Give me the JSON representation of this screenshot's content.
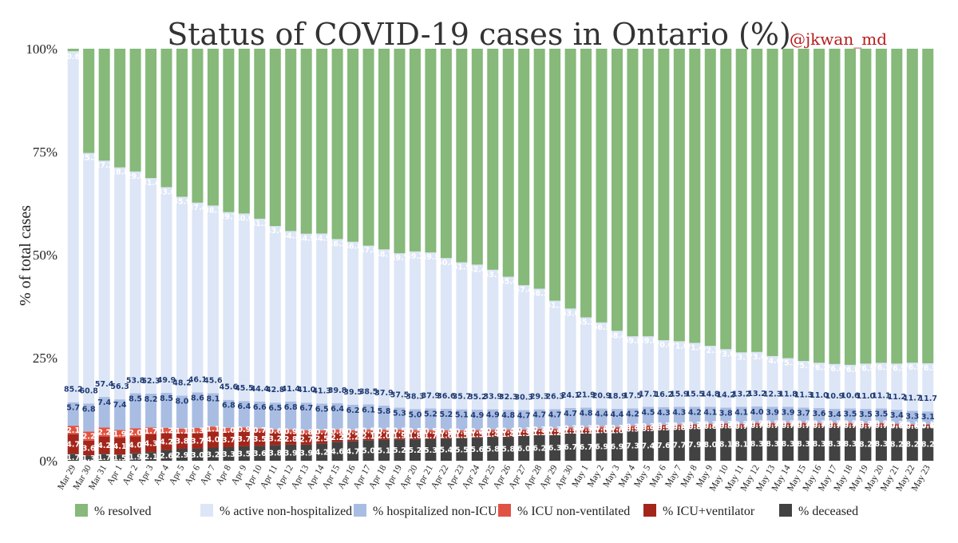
{
  "chart_data": {
    "type": "bar",
    "stacked": true,
    "title": "Status of COVID-19 cases in Ontario (%)",
    "subtitle": "@jkwan_md",
    "ylabel": "% of total cases",
    "xlabel": "",
    "ylim": [
      0,
      100
    ],
    "yticks": [
      "0%",
      "25%",
      "50%",
      "75%",
      "100%"
    ],
    "grid": false,
    "legend_position": "bottom",
    "categories": [
      "Mar 29",
      "Mar 30",
      "Mar 31",
      "Apr 1",
      "Apr 2",
      "Apr 3",
      "Apr 4",
      "Apr 5",
      "Apr 6",
      "Apr 7",
      "Apr 8",
      "Apr 9",
      "Apr 10",
      "Apr 11",
      "Apr 12",
      "Apr 13",
      "Apr 14",
      "Apr 15",
      "Apr 16",
      "Apr 17",
      "Apr 18",
      "Apr 19",
      "Apr 20",
      "Apr 21",
      "Apr 22",
      "Apr 23",
      "Apr 24",
      "Apr 25",
      "Apr 26",
      "Apr 27",
      "Apr 28",
      "Apr 29",
      "Apr 30",
      "May 1",
      "May 2",
      "May 3",
      "May 4",
      "May 5",
      "May 6",
      "May 7",
      "May 8",
      "May 9",
      "May 10",
      "May 11",
      "May 12",
      "May 13",
      "May 14",
      "May 15",
      "May 16",
      "May 17",
      "May 18",
      "May 19",
      "May 20",
      "May 21",
      "May 22",
      "May 23"
    ],
    "series": [
      {
        "name": "% deceased",
        "color": "#424242",
        "label_color": "#ffffff",
        "values": [
          1.7,
          1.3,
          1.7,
          1.5,
          1.9,
          2.1,
          2.6,
          2.9,
          3.0,
          3.2,
          3.3,
          3.5,
          3.6,
          3.8,
          3.9,
          3.9,
          4.2,
          4.6,
          4.7,
          5.0,
          5.1,
          5.2,
          5.2,
          5.3,
          5.4,
          5.5,
          5.6,
          5.8,
          5.8,
          6.0,
          6.2,
          6.3,
          6.7,
          6.7,
          6.9,
          6.9,
          7.3,
          7.4,
          7.6,
          7.7,
          7.9,
          8.0,
          8.1,
          8.1,
          8.3,
          8.3,
          8.3,
          8.3,
          8.3,
          8.3,
          8.3,
          8.2,
          8.3,
          8.2,
          8.2,
          8.2
        ]
      },
      {
        "name": "% ICU+ventilator",
        "color": "#a4261b",
        "label_color": "#ffffff",
        "values": [
          4.7,
          3.6,
          4.2,
          4.1,
          4.0,
          4.3,
          4.2,
          3.8,
          3.7,
          4.0,
          3.7,
          3.7,
          3.5,
          3.2,
          2.8,
          2.7,
          2.5,
          2.2,
          2.2,
          2.1,
          2.0,
          1.9,
          1.8,
          1.7,
          1.6,
          1.5,
          1.5,
          1.4,
          1.4,
          1.3,
          1.3,
          1.2,
          1.1,
          1.1,
          1.0,
          1.0,
          0.9,
          0.9,
          0.9,
          0.8,
          0.8,
          0.8,
          0.8,
          0.7,
          0.7,
          0.7,
          0.7,
          0.7,
          0.7,
          0.7,
          0.7,
          0.7,
          0.7,
          0.6,
          0.6,
          0.6
        ]
      },
      {
        "name": "% ICU non-ventilated",
        "color": "#e05344",
        "label_color": "#ffffff",
        "values": [
          2.1,
          2.2,
          2.2,
          1.9,
          2.0,
          1.7,
          1.2,
          1.1,
          1.3,
          1.1,
          1.0,
          0.9,
          0.7,
          0.6,
          0.9,
          0.8,
          0.7,
          0.8,
          0.5,
          0.5,
          0.5,
          0.5,
          0.5,
          0.5,
          0.4,
          0.4,
          0.4,
          0.4,
          0.4,
          0.3,
          0.3,
          0.3,
          0.3,
          0.3,
          0.4,
          0.3,
          0.3,
          0.3,
          0.2,
          0.3,
          0.2,
          0.2,
          0.2,
          0.2,
          0.2,
          0.2,
          0.2,
          0.2,
          0.2,
          0.2,
          0.2,
          0.2,
          0.2,
          0.2,
          0.1,
          0.1
        ]
      },
      {
        "name": "% hospitalized non-ICU",
        "color": "#a9bde3",
        "label_color": "#1f3b73",
        "values": [
          5.7,
          6.8,
          7.4,
          7.4,
          8.5,
          8.2,
          8.5,
          8.0,
          8.6,
          8.1,
          6.8,
          6.4,
          6.6,
          6.5,
          6.8,
          6.7,
          6.5,
          6.4,
          6.2,
          6.1,
          5.8,
          5.3,
          5.0,
          5.2,
          5.2,
          5.1,
          4.9,
          4.9,
          4.8,
          4.7,
          4.7,
          4.7,
          4.7,
          4.8,
          4.4,
          4.4,
          4.2,
          4.5,
          4.3,
          4.3,
          4.2,
          4.1,
          3.8,
          4.1,
          4.0,
          3.9,
          3.9,
          3.7,
          3.6,
          3.4,
          3.5,
          3.5,
          3.5,
          3.4,
          3.3,
          3.1
        ]
      },
      {
        "name": "% active non-hospitalized",
        "color": "#dde6f7",
        "label_color": "#1f3b73",
        "values": [
          85.2,
          60.8,
          57.4,
          56.3,
          53.8,
          52.3,
          49.9,
          48.2,
          46.1,
          45.6,
          45.6,
          45.5,
          44.4,
          42.8,
          41.4,
          41.0,
          41.3,
          39.8,
          39.5,
          38.5,
          37.9,
          37.5,
          38.3,
          37.9,
          36.6,
          35.7,
          35.2,
          33.9,
          32.3,
          30.3,
          29.3,
          26.3,
          24.1,
          21.9,
          20.9,
          18.9,
          17.5,
          17.1,
          16.2,
          15.9,
          15.5,
          14.8,
          14.2,
          13.2,
          13.2,
          12.3,
          11.8,
          11.3,
          11.0,
          10.9,
          10.6,
          11.0,
          11.1,
          11.2,
          11.7,
          11.7
        ]
      },
      {
        "name": "% resolved",
        "color": "#86b97a",
        "label_color": "#ffffff",
        "values": [
          0.6,
          25.3,
          27.2,
          28.8,
          29.8,
          31.4,
          33.6,
          35.9,
          37.4,
          38.1,
          39.7,
          40.0,
          41.3,
          43.0,
          44.3,
          44.9,
          44.9,
          46.2,
          46.8,
          47.8,
          48.7,
          49.7,
          49.2,
          49.5,
          50.8,
          51.9,
          52.4,
          53.7,
          55.4,
          57.4,
          58.3,
          61.1,
          63.0,
          65.2,
          66.5,
          68.4,
          69.8,
          69.8,
          70.6,
          71.0,
          71.4,
          72.1,
          73.0,
          73.7,
          73.6,
          74.6,
          75.1,
          75.7,
          76.3,
          76.6,
          76.8,
          76.5,
          76.3,
          76.5,
          76.5,
          76.5
        ]
      }
    ]
  }
}
